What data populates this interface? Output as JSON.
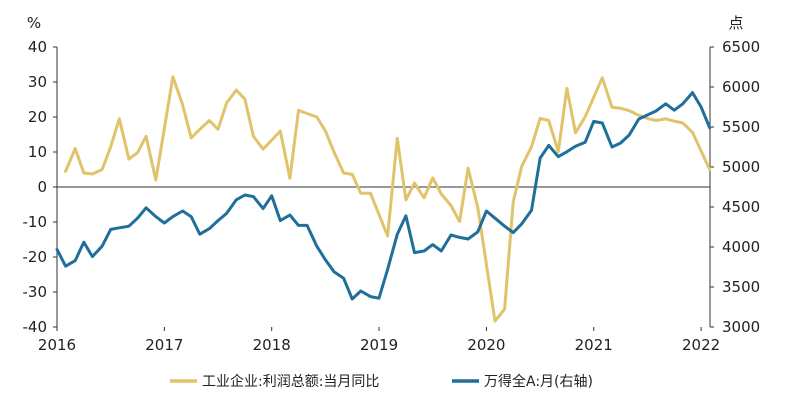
{
  "chart_data": {
    "type": "line",
    "title": "",
    "xlabel": "",
    "left_axis": {
      "unit_label": "%",
      "ylim": [
        -40,
        40
      ],
      "ticks": [
        40,
        30,
        20,
        10,
        0,
        -10,
        -20,
        -30,
        -40
      ]
    },
    "right_axis": {
      "unit_label": "点",
      "ylim": [
        3000,
        6500
      ],
      "ticks": [
        6500,
        6000,
        5500,
        5000,
        4500,
        4000,
        3500,
        3000
      ]
    },
    "x_tick_labels": [
      "2016",
      "2017",
      "2018",
      "2019",
      "2020",
      "2021",
      "2022"
    ],
    "x_range": [
      2016.0,
      2022.083
    ],
    "grid": false,
    "legend_position": "bottom",
    "series": [
      {
        "name": "工业企业:利润总额:当月同比",
        "axis": "left",
        "color": "#e0c36b",
        "x": [
          2016.08,
          2016.17,
          2016.25,
          2016.33,
          2016.42,
          2016.5,
          2016.58,
          2016.67,
          2016.75,
          2016.83,
          2016.92,
          2017.08,
          2017.17,
          2017.25,
          2017.33,
          2017.42,
          2017.5,
          2017.58,
          2017.67,
          2017.75,
          2017.83,
          2017.92,
          2018.08,
          2018.17,
          2018.25,
          2018.33,
          2018.42,
          2018.5,
          2018.58,
          2018.67,
          2018.75,
          2018.83,
          2018.92,
          2019.08,
          2019.17,
          2019.25,
          2019.33,
          2019.42,
          2019.5,
          2019.58,
          2019.67,
          2019.75,
          2019.83,
          2019.92,
          2020.08,
          2020.17,
          2020.25,
          2020.33,
          2020.42,
          2020.5,
          2020.58,
          2020.67,
          2020.75,
          2020.83,
          2020.92,
          2021.08,
          2021.17,
          2021.25,
          2021.33,
          2021.42,
          2021.5,
          2021.58,
          2021.67,
          2021.75,
          2021.83,
          2021.92,
          2022.08
        ],
        "values": [
          4.5,
          11,
          4,
          3.7,
          5,
          11.5,
          19.5,
          8,
          9.8,
          14.5,
          2,
          31.5,
          23.5,
          14,
          16.5,
          19,
          16.5,
          24,
          27.7,
          25.1,
          14.5,
          10.8,
          16,
          2.5,
          21.9,
          21,
          20,
          16,
          10,
          4,
          3.6,
          -1.8,
          -1.8,
          -14,
          13.9,
          -3.7,
          1.1,
          -3.1,
          2.6,
          -2,
          -5.3,
          -9.9,
          5.4,
          -5.9,
          -38.3,
          -34.9,
          -4.3,
          6,
          11.5,
          19.6,
          19,
          10.1,
          28.2,
          15.5,
          20.1,
          31.2,
          22.8,
          22.5,
          21.8,
          20.5,
          19.6,
          19,
          19.5,
          18.8,
          18.3,
          15.6,
          5
        ]
      },
      {
        "name": "万得全A:月(右轴)",
        "axis": "right",
        "color": "#1f6f9a",
        "x": [
          2016.0,
          2016.08,
          2016.17,
          2016.25,
          2016.33,
          2016.42,
          2016.5,
          2016.58,
          2016.67,
          2016.75,
          2016.83,
          2016.92,
          2017.0,
          2017.08,
          2017.17,
          2017.25,
          2017.33,
          2017.42,
          2017.5,
          2017.58,
          2017.67,
          2017.75,
          2017.83,
          2017.92,
          2018.0,
          2018.08,
          2018.17,
          2018.25,
          2018.33,
          2018.42,
          2018.5,
          2018.58,
          2018.67,
          2018.75,
          2018.83,
          2018.92,
          2019.0,
          2019.08,
          2019.17,
          2019.25,
          2019.33,
          2019.42,
          2019.5,
          2019.58,
          2019.67,
          2019.75,
          2019.83,
          2019.92,
          2020.0,
          2020.08,
          2020.17,
          2020.25,
          2020.33,
          2020.42,
          2020.5,
          2020.58,
          2020.67,
          2020.75,
          2020.83,
          2020.92,
          2021.0,
          2021.08,
          2021.17,
          2021.25,
          2021.33,
          2021.42,
          2021.5,
          2021.58,
          2021.67,
          2021.75,
          2021.83,
          2021.92,
          2022.0,
          2022.08
        ],
        "values": [
          3970,
          3760,
          3830,
          4060,
          3880,
          4010,
          4220,
          4240,
          4260,
          4360,
          4490,
          4380,
          4300,
          4380,
          4450,
          4380,
          4160,
          4230,
          4330,
          4420,
          4590,
          4650,
          4630,
          4480,
          4640,
          4330,
          4400,
          4270,
          4270,
          4010,
          3840,
          3690,
          3610,
          3350,
          3450,
          3380,
          3360,
          3720,
          4160,
          4390,
          3930,
          3950,
          4030,
          3950,
          4150,
          4120,
          4100,
          4190,
          4450,
          4360,
          4260,
          4180,
          4290,
          4460,
          5110,
          5270,
          5130,
          5190,
          5260,
          5310,
          5570,
          5550,
          5250,
          5300,
          5400,
          5600,
          5650,
          5700,
          5790,
          5710,
          5790,
          5930,
          5750,
          5490
        ]
      }
    ]
  }
}
